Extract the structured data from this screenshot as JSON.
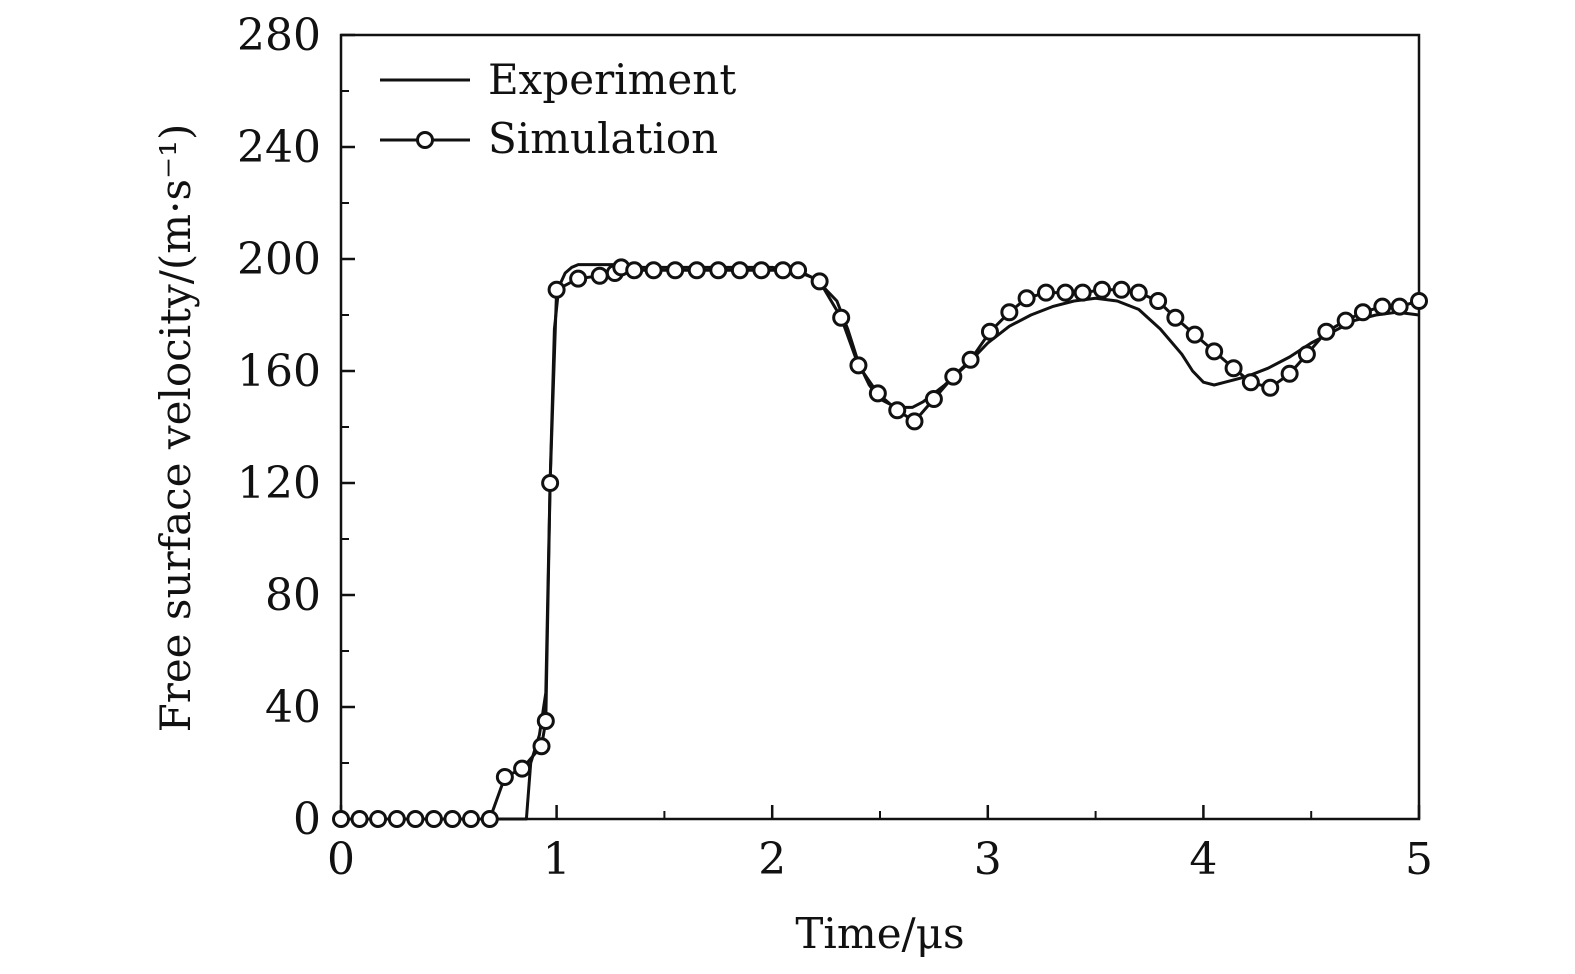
{
  "chart_data": {
    "type": "line",
    "title": "",
    "xlabel": "Time/μs",
    "ylabel": "Free surface velocity/(m·s⁻¹)",
    "xlim": [
      0,
      5
    ],
    "ylim": [
      0,
      280
    ],
    "xticks": [
      0,
      1,
      2,
      3,
      4,
      5
    ],
    "xtick_labels": [
      "0",
      "1",
      "2",
      "3",
      "4",
      "5"
    ],
    "yticks": [
      0,
      40,
      80,
      120,
      160,
      200,
      240,
      280
    ],
    "ytick_labels": [
      "0",
      "40",
      "80",
      "120",
      "160",
      "200",
      "240",
      "280"
    ],
    "x_minor_step": 0.5,
    "y_minor_step": 20,
    "grid": false,
    "legend_position": "top-left",
    "series": [
      {
        "name": "Experiment",
        "marker": "none",
        "x": [
          0,
          0.5,
          0.86,
          0.88,
          0.92,
          0.95,
          0.97,
          0.99,
          1.01,
          1.04,
          1.07,
          1.1,
          1.2,
          1.3,
          1.4,
          1.6,
          1.8,
          2.0,
          2.1,
          2.2,
          2.3,
          2.35,
          2.4,
          2.45,
          2.5,
          2.55,
          2.6,
          2.65,
          2.7,
          2.8,
          2.9,
          3.0,
          3.1,
          3.2,
          3.3,
          3.4,
          3.5,
          3.6,
          3.7,
          3.8,
          3.9,
          3.95,
          4.0,
          4.05,
          4.1,
          4.2,
          4.3,
          4.4,
          4.5,
          4.6,
          4.7,
          4.8,
          4.9,
          5.0
        ],
        "y": [
          0,
          0,
          0,
          20,
          30,
          45,
          120,
          175,
          190,
          195,
          197,
          198,
          198,
          198,
          197,
          197,
          197,
          197,
          196,
          193,
          185,
          175,
          163,
          155,
          150,
          148,
          147,
          147,
          149,
          155,
          162,
          170,
          176,
          180,
          183,
          185,
          186,
          185,
          182,
          175,
          166,
          160,
          156,
          155,
          156,
          158,
          161,
          165,
          170,
          174,
          178,
          180,
          181,
          180
        ]
      },
      {
        "name": "Simulation",
        "marker": "circle",
        "x": [
          0,
          0.086,
          0.172,
          0.259,
          0.345,
          0.431,
          0.517,
          0.603,
          0.69,
          0.76,
          0.84,
          0.93,
          0.95,
          0.97,
          1.0,
          1.1,
          1.2,
          1.27,
          1.3,
          1.36,
          1.45,
          1.55,
          1.65,
          1.75,
          1.85,
          1.95,
          2.05,
          2.12,
          2.22,
          2.32,
          2.4,
          2.49,
          2.58,
          2.66,
          2.75,
          2.84,
          2.92,
          3.01,
          3.1,
          3.18,
          3.27,
          3.36,
          3.44,
          3.53,
          3.62,
          3.7,
          3.79,
          3.87,
          3.96,
          4.05,
          4.14,
          4.22,
          4.31,
          4.4,
          4.48,
          4.57,
          4.66,
          4.74,
          4.83,
          4.91,
          5.0
        ],
        "y": [
          0,
          0,
          0,
          0,
          0,
          0,
          0,
          0,
          0,
          15,
          18,
          26,
          35,
          120,
          189,
          193,
          194,
          195,
          197,
          196,
          196,
          196,
          196,
          196,
          196,
          196,
          196,
          196,
          192,
          179,
          162,
          152,
          146,
          142,
          150,
          158,
          164,
          174,
          181,
          186,
          188,
          188,
          188,
          189,
          189,
          188,
          185,
          179,
          173,
          167,
          161,
          156,
          154,
          159,
          166,
          174,
          178,
          181,
          183,
          183,
          185
        ]
      }
    ]
  }
}
